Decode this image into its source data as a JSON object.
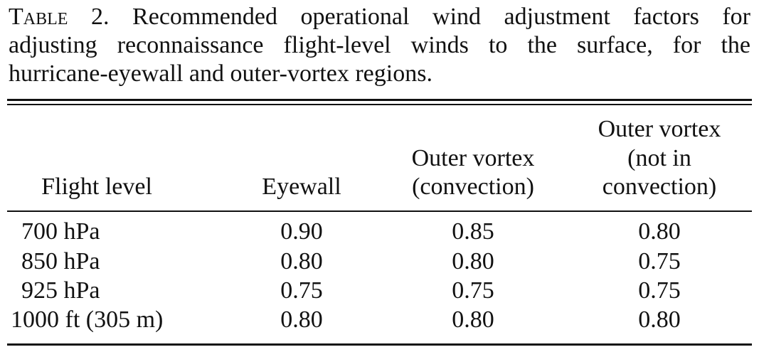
{
  "caption": {
    "label": "Table 2.",
    "lines": [
      "Recommended operational wind adjustment factors for",
      "adjusting reconnaissance flight-level winds to the surface, for the",
      "hurricane-eyewall and outer-vortex regions."
    ]
  },
  "table": {
    "header": [
      [
        "Flight level"
      ],
      [
        "Eyewall"
      ],
      [
        "Outer vortex",
        "(convection)"
      ],
      [
        "Outer vortex",
        "(not in",
        "convection)"
      ]
    ],
    "rows": [
      [
        "700 hPa",
        "0.90",
        "0.85",
        "0.80"
      ],
      [
        "850 hPa",
        "0.80",
        "0.80",
        "0.75"
      ],
      [
        "925 hPa",
        "0.75",
        "0.75",
        "0.75"
      ],
      [
        "1000 ft (305 m)",
        "0.80",
        "0.80",
        "0.80"
      ]
    ]
  }
}
